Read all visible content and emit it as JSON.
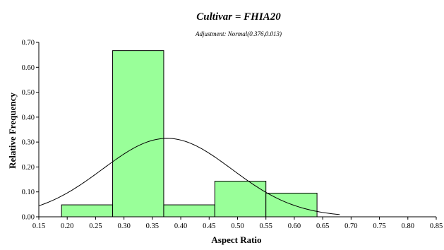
{
  "chart_data": {
    "type": "bar",
    "title": "Cultivar = FHIA20",
    "subtitle": "Adjustment: Normal(0.376,0.013)",
    "xlabel": "Aspect Ratio",
    "ylabel": "Relative Frequency",
    "xlim": [
      0.15,
      0.85
    ],
    "ylim": [
      0.0,
      0.7
    ],
    "x_ticks": [
      "0.15",
      "0.20",
      "0.25",
      "0.30",
      "0.35",
      "0.40",
      "0.45",
      "0.50",
      "0.55",
      "0.60",
      "0.65",
      "0.70",
      "0.75",
      "0.80",
      "0.85"
    ],
    "y_ticks": [
      "0.00",
      "0.10",
      "0.20",
      "0.30",
      "0.40",
      "0.50",
      "0.60",
      "0.70"
    ],
    "bins": [
      {
        "x0": 0.19,
        "x1": 0.28,
        "value": 0.048
      },
      {
        "x0": 0.28,
        "x1": 0.37,
        "value": 0.667
      },
      {
        "x0": 0.37,
        "x1": 0.46,
        "value": 0.048
      },
      {
        "x0": 0.46,
        "x1": 0.55,
        "value": 0.143
      },
      {
        "x0": 0.55,
        "x1": 0.64,
        "value": 0.095
      }
    ],
    "fit": {
      "distribution": "normal",
      "mean": 0.376,
      "variance": 0.013,
      "x_range": [
        0.15,
        0.68
      ]
    },
    "bar_color": "#99ff99",
    "bar_edge_color": "#000000",
    "line_color": "#000000",
    "grid": false,
    "legend": "none"
  }
}
